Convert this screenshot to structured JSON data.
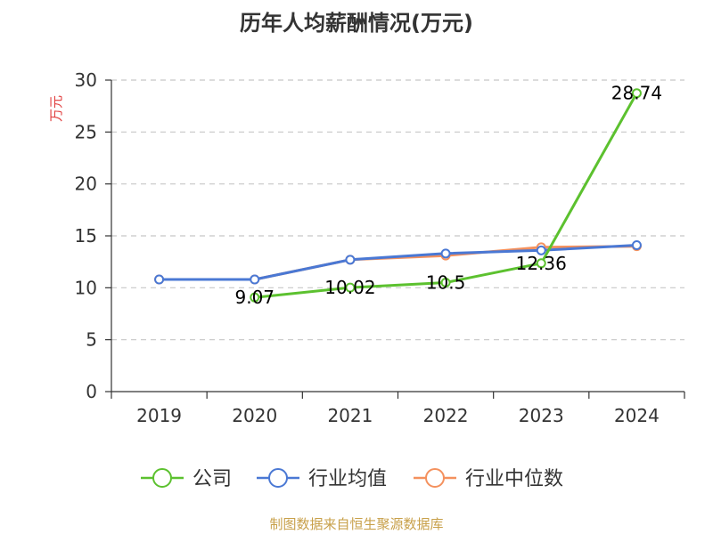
{
  "chart_data": {
    "type": "line",
    "title": "历年人均薪酬情况(万元)",
    "ylabel": "万元",
    "xlabel": "",
    "categories": [
      "2019",
      "2020",
      "2021",
      "2022",
      "2023",
      "2024"
    ],
    "ylim": [
      0,
      30
    ],
    "yticks": [
      0,
      5,
      10,
      15,
      20,
      25,
      30
    ],
    "grid": true,
    "legend_position": "bottom",
    "series": [
      {
        "name": "公司",
        "color": "#5cc12f",
        "values": [
          null,
          9.07,
          10.02,
          10.5,
          12.36,
          28.74
        ],
        "labels": [
          "",
          "9.07",
          "10.02",
          "10.5",
          "12.36",
          "28.74"
        ]
      },
      {
        "name": "行业均值",
        "color": "#4a78d4",
        "values": [
          10.8,
          10.8,
          12.7,
          13.3,
          13.6,
          14.1
        ],
        "labels": [
          "",
          "",
          "",
          "",
          "",
          ""
        ]
      },
      {
        "name": "行业中位数",
        "color": "#f4915e",
        "values": [
          10.8,
          10.8,
          12.7,
          13.1,
          13.9,
          14.0
        ],
        "labels": [
          "",
          "",
          "",
          "",
          "",
          ""
        ]
      }
    ]
  },
  "source": "制图数据来自恒生聚源数据库"
}
